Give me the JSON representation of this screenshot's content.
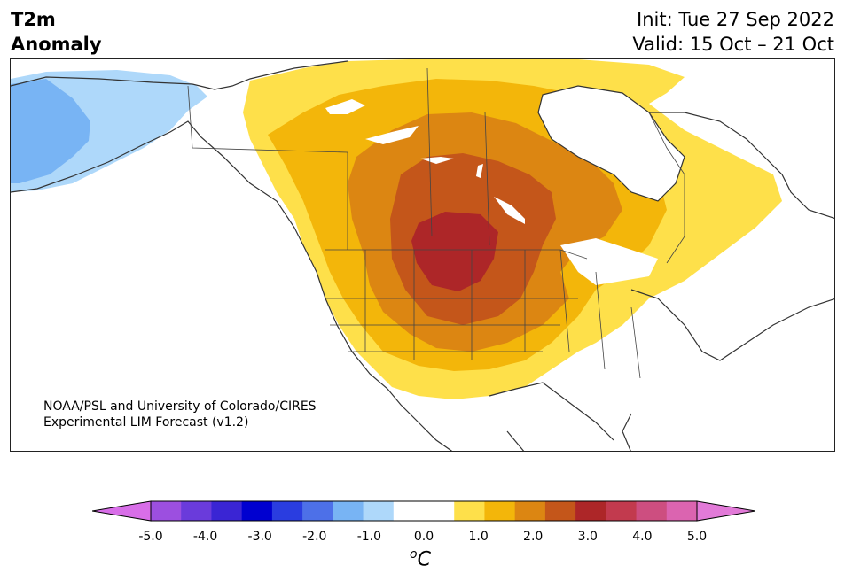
{
  "header": {
    "title_line1": "T2m",
    "title_line2": "Anomaly",
    "init": "Init: Tue 27 Sep 2022",
    "valid": "Valid: 15 Oct – 21 Oct"
  },
  "credit": {
    "line1": "NOAA/PSL and University of Colorado/CIRES",
    "line2": "Experimental LIM Forecast (v1.2)"
  },
  "colorbar": {
    "colors": [
      "#d86ee8",
      "#9c4fe0",
      "#6a3bdb",
      "#3a25d4",
      "#0000d0",
      "#2a3de0",
      "#4d70e8",
      "#78b4f4",
      "#aed8fa",
      "#ffffff",
      "#ffffff",
      "#fee04a",
      "#f3b60a",
      "#dc8612",
      "#c4561a",
      "#ad2628",
      "#c23a4e",
      "#cd4e80",
      "#db64b0",
      "#e27ad8"
    ],
    "tick_labels": [
      "-5.0",
      "-4.0",
      "-3.0",
      "-2.0",
      "-1.0",
      "0.0",
      "1.0",
      "2.0",
      "3.0",
      "4.0",
      "5.0"
    ],
    "unit_base": "C",
    "unit_sup": "o"
  },
  "map": {
    "region": "North America",
    "anomaly_colors": {
      "neg_light": "#aed8fa",
      "neg_medium": "#78b4f4",
      "pos_1": "#fee04a",
      "pos_2": "#f3b60a",
      "pos_3": "#dc8612",
      "pos_4": "#c4561a",
      "pos_5": "#ad2628"
    }
  }
}
